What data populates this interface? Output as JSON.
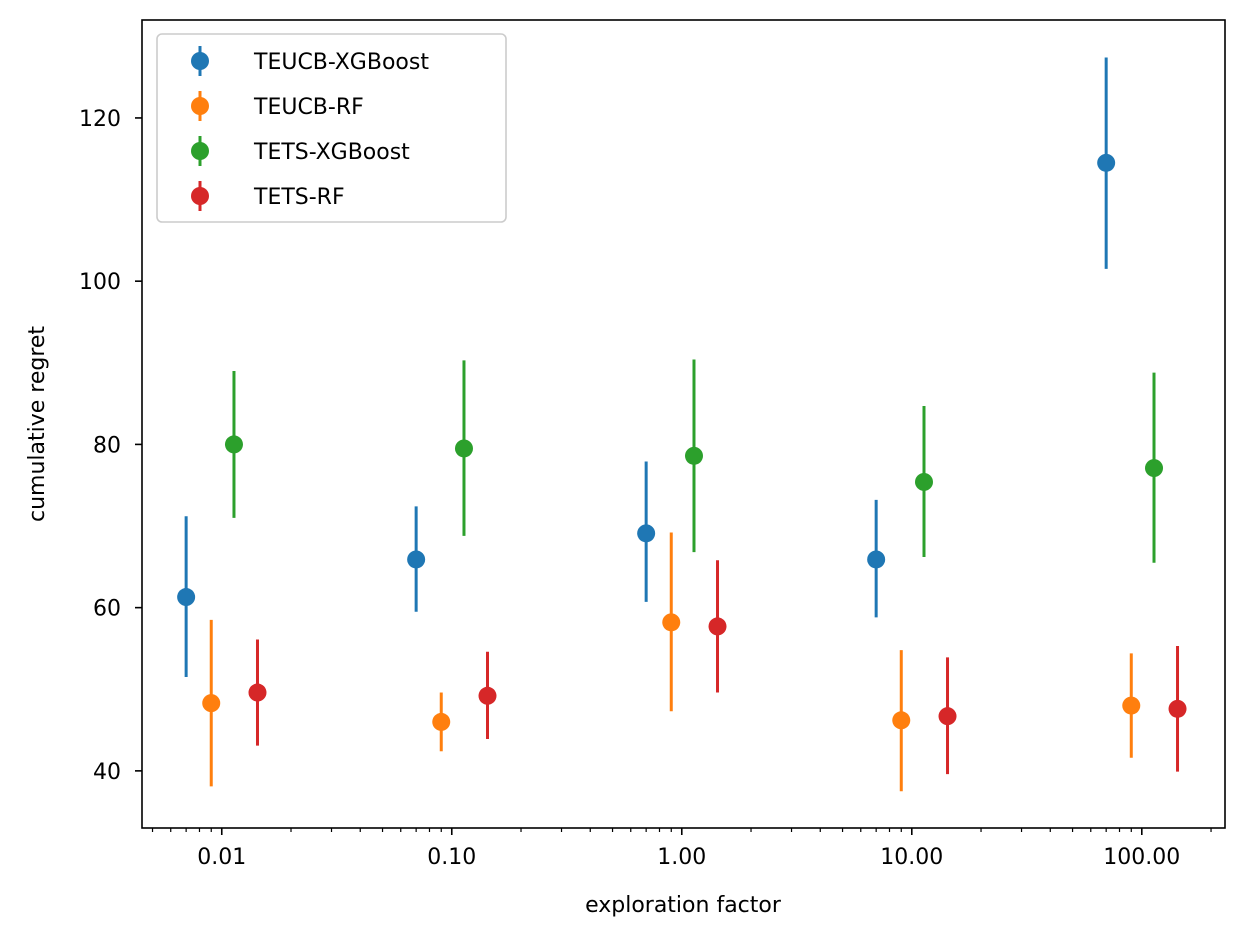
{
  "chart_data": {
    "type": "errorbar",
    "xlabel": "exploration factor",
    "ylabel": "cumulative regret",
    "xscale": "log",
    "xlim": [
      0.0045,
      230
    ],
    "ylim": [
      33,
      132
    ],
    "x_ticks": [
      0.01,
      0.1,
      1,
      10,
      100
    ],
    "x_tick_labels": [
      "0.01",
      "0.10",
      "1.00",
      "10.00",
      "100.00"
    ],
    "y_ticks": [
      40,
      60,
      80,
      100,
      120
    ],
    "y_tick_labels": [
      "40",
      "60",
      "80",
      "100",
      "120"
    ],
    "legend_position": "top-left",
    "series": [
      {
        "name": "TEUCB-XGBoost",
        "color": "#1f77b4",
        "x": [
          0.007,
          0.07,
          0.7,
          7,
          70
        ],
        "y": [
          61.3,
          65.9,
          69.1,
          65.9,
          114.5
        ],
        "err_low": [
          51.5,
          59.5,
          60.7,
          58.8,
          101.5
        ],
        "err_high": [
          71.2,
          72.4,
          77.9,
          73.2,
          127.4
        ]
      },
      {
        "name": "TEUCB-RF",
        "color": "#ff7f0e",
        "x": [
          0.009,
          0.09,
          0.9,
          9,
          90
        ],
        "y": [
          48.3,
          46.0,
          58.2,
          46.2,
          48.0
        ],
        "err_low": [
          38.1,
          42.4,
          47.3,
          37.5,
          41.6
        ],
        "err_high": [
          58.5,
          49.6,
          69.2,
          54.8,
          54.4
        ]
      },
      {
        "name": "TETS-XGBoost",
        "color": "#2ca02c",
        "x": [
          0.0113,
          0.113,
          1.13,
          11.3,
          113
        ],
        "y": [
          80.0,
          79.5,
          78.6,
          75.4,
          77.1
        ],
        "err_low": [
          71.0,
          68.8,
          66.8,
          66.2,
          65.5
        ],
        "err_high": [
          89.0,
          90.3,
          90.4,
          84.7,
          88.8
        ]
      },
      {
        "name": "TETS-RF",
        "color": "#d62728",
        "x": [
          0.0143,
          0.143,
          1.43,
          14.3,
          143
        ],
        "y": [
          49.6,
          49.2,
          57.7,
          46.7,
          47.6
        ],
        "err_low": [
          43.1,
          43.9,
          49.6,
          39.6,
          39.9
        ],
        "err_high": [
          56.1,
          54.6,
          65.8,
          53.9,
          55.3
        ]
      }
    ]
  }
}
